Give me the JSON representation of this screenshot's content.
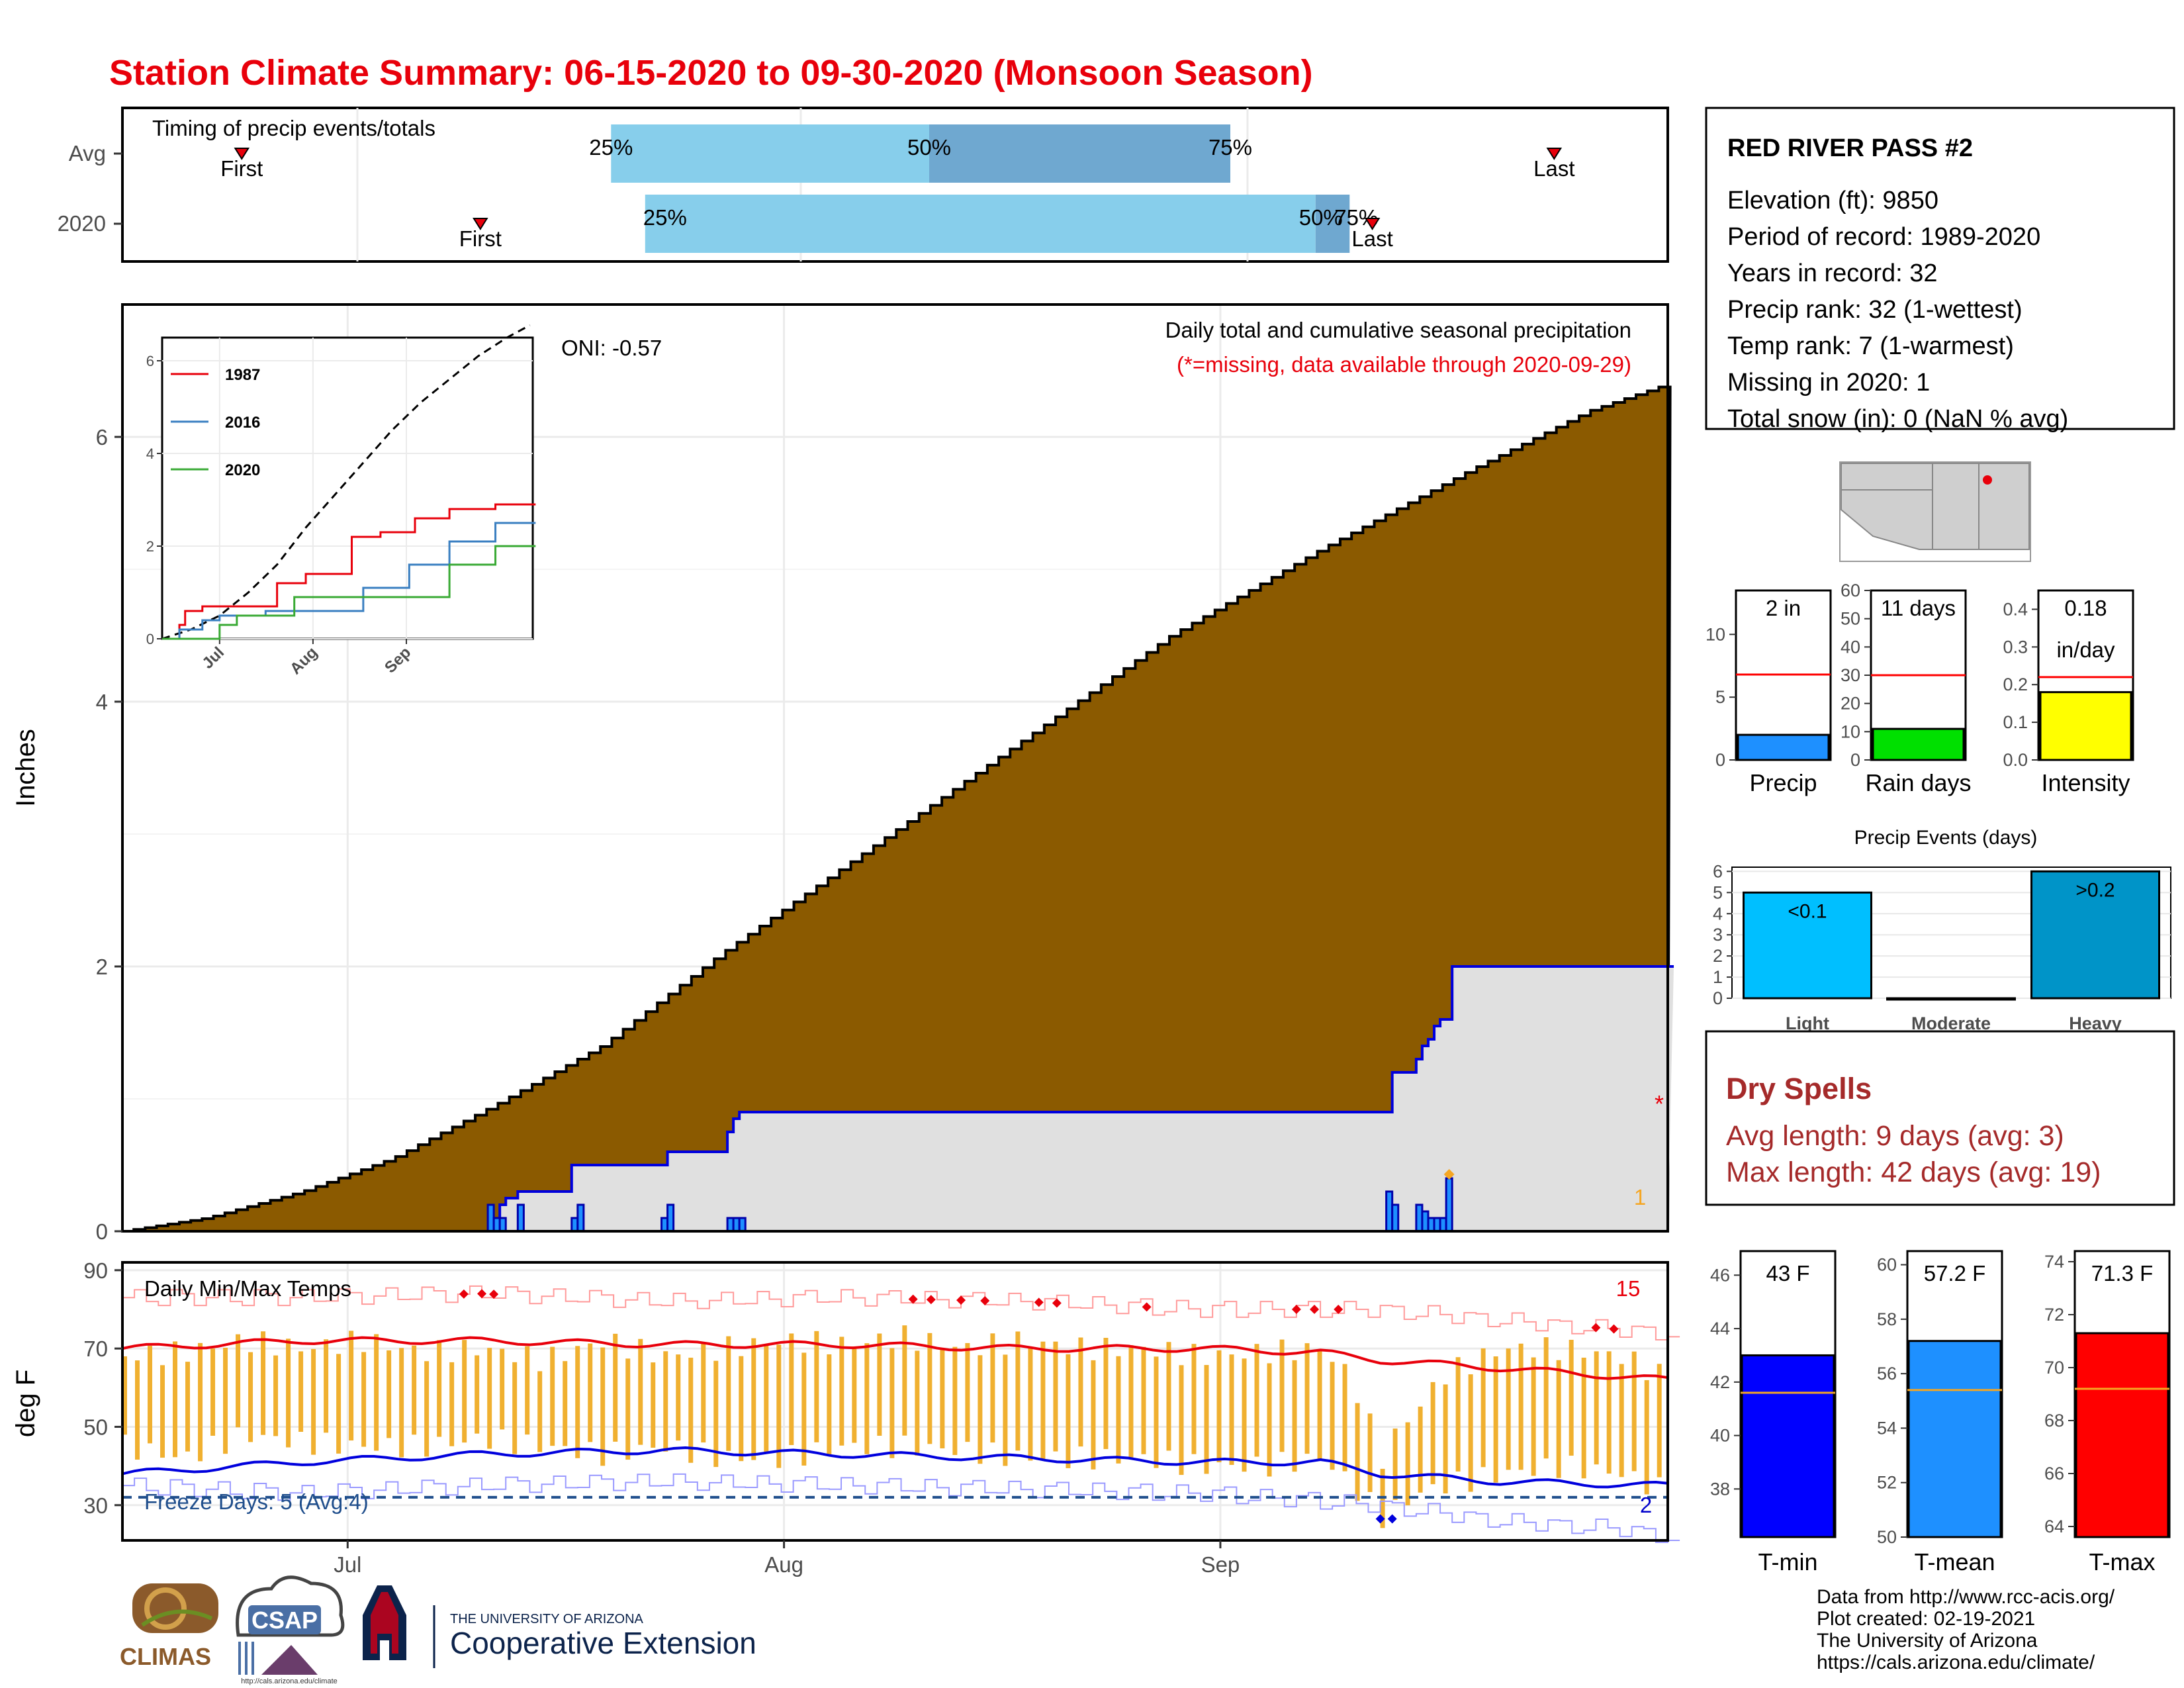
{
  "title": "Station Climate Summary: 06-15-2020 to 09-30-2020 (Monsoon Season)",
  "colors": {
    "title": "#e8000b",
    "precip_fill": "#8b5a00",
    "daily_bar": "#1e90ff",
    "max_temp": "#e8000b",
    "min_temp": "#0000dd",
    "range_bar": "#f0b030",
    "timing_light": "#87ceeb",
    "timing_dark": "#6fa8d0"
  },
  "timing": {
    "title": "Timing of precip events/totals",
    "rows": [
      {
        "label": "Avg",
        "first_day": 21,
        "q25_day": 86,
        "q50_day": 142,
        "q75_day": 195,
        "last_day": 252,
        "first_label": "First",
        "last_label": "Last",
        "q25_label": "25%",
        "q50_label": "50%",
        "q75_label": "75%"
      },
      {
        "label": "2020",
        "first_day": 63,
        "q25_day": 92,
        "q50_day": 210,
        "q75_day": 216,
        "last_day": 220,
        "first_label": "First",
        "last_label": "Last",
        "q25_label": "25%",
        "q50_label": "50%",
        "q75_label": "75%"
      }
    ]
  },
  "precip": {
    "title": "Daily total and cumulative seasonal precipitation",
    "note": "(*=missing, data available through 2020-09-29)",
    "oni": "ONI: -0.57",
    "ylabel": "Inches",
    "missing_count": "1",
    "missing_marker": "*",
    "yticks": [
      "0",
      "2",
      "4",
      "6"
    ]
  },
  "inset": {
    "yticks": [
      "0",
      "2",
      "4",
      "6"
    ],
    "xticks": [
      "Jul",
      "Aug",
      "Sep"
    ],
    "legend": [
      {
        "name": "1987",
        "color": "#e8000b"
      },
      {
        "name": "2016",
        "color": "#3a7fc1"
      },
      {
        "name": "2020",
        "color": "#3aaa35"
      }
    ]
  },
  "temps": {
    "title": "Daily Min/Max Temps",
    "ylabel": "deg F",
    "freeze_label": "Freeze Days: 5 (Avg:4)",
    "record_high_count": "15",
    "record_low_count": "2",
    "yticks": [
      "30",
      "50",
      "70",
      "90"
    ],
    "months": [
      "Jul",
      "Aug",
      "Sep"
    ]
  },
  "station": {
    "name": "RED RIVER PASS #2",
    "lines": [
      "Elevation (ft): 9850",
      "Period of record: 1989-2020",
      "Years in record: 32",
      "Precip rank: 32 (1-wettest)",
      "Temp rank: 7 (1-warmest)",
      "Missing in 2020: 1",
      "Total snow (in): 0 (NaN % avg)"
    ]
  },
  "minis": [
    {
      "label": "Precip",
      "value_label": "2 in",
      "value": 2.0,
      "avg": 6.8,
      "ymax": 13.5,
      "yticks": [
        "0",
        "5",
        "10"
      ],
      "tickvals": [
        0,
        5,
        10
      ],
      "color": "#1e90ff"
    },
    {
      "label": "Rain days",
      "value_label": "11 days",
      "value": 11,
      "avg": 30,
      "ymax": 60,
      "yticks": [
        "0",
        "10",
        "20",
        "30",
        "40",
        "50",
        "60"
      ],
      "tickvals": [
        0,
        10,
        20,
        30,
        40,
        50,
        60
      ],
      "color": "#00e000"
    },
    {
      "label": "Intensity",
      "value_label": "0.18",
      "value_label2": "in/day",
      "value": 0.18,
      "avg": 0.22,
      "ymax": 0.45,
      "yticks": [
        "0.0",
        "0.1",
        "0.2",
        "0.3",
        "0.4"
      ],
      "tickvals": [
        0,
        0.1,
        0.2,
        0.3,
        0.4
      ],
      "color": "#ffff00"
    }
  ],
  "events": {
    "title": "Precip Events (days)",
    "yticks": [
      "0",
      "1",
      "2",
      "3",
      "4",
      "5",
      "6"
    ],
    "bars": [
      {
        "label": "Light",
        "value_label": "<0.1",
        "value": 5,
        "color": "#00bfff"
      },
      {
        "label": "Moderate",
        "value_label": "",
        "value": 0,
        "color": "#1e90ff"
      },
      {
        "label": "Heavy",
        "value_label": ">0.2",
        "value": 6,
        "color": "#0094c8"
      }
    ]
  },
  "dry_spells": {
    "title": "Dry Spells",
    "avg_length": "Avg length: 9 days (avg: 3)",
    "max_length": "Max length: 42 days (avg: 19)"
  },
  "temp_minis": [
    {
      "label": "T-min",
      "value_label": "43 F",
      "value": 43.0,
      "avg": 41.6,
      "ymin": 36.2,
      "ymax": 46.9,
      "yticks": [
        "38",
        "40",
        "42",
        "44",
        "46"
      ],
      "tickvals": [
        38,
        40,
        42,
        44,
        46
      ],
      "color": "#0000ff"
    },
    {
      "label": "T-mean",
      "value_label": "57.2 F",
      "value": 57.2,
      "avg": 55.4,
      "ymin": 50.0,
      "ymax": 60.5,
      "yticks": [
        "50",
        "52",
        "54",
        "56",
        "58",
        "60"
      ],
      "tickvals": [
        50,
        52,
        54,
        56,
        58,
        60
      ],
      "color": "#1e90ff"
    },
    {
      "label": "T-max",
      "value_label": "71.3 F",
      "value": 71.3,
      "avg": 69.2,
      "ymin": 63.6,
      "ymax": 74.4,
      "yticks": [
        "64",
        "66",
        "68",
        "70",
        "72",
        "74"
      ],
      "tickvals": [
        64,
        66,
        68,
        70,
        72,
        74
      ],
      "color": "#ff0000"
    }
  ],
  "footer": {
    "lines": [
      "Data from http://www.rcc-acis.org/",
      "Plot created: 02-19-2021",
      "The University of Arizona",
      "https://cals.arizona.edu/climate/"
    ]
  },
  "logos": {
    "climas": "CLIMAS",
    "csap": "CSAP",
    "csap_url": "http://cals.arizona.edu/climate",
    "university": "THE UNIVERSITY OF ARIZONA",
    "extension": "Cooperative Extension"
  },
  "chart_data": [
    {
      "type": "area",
      "title": "Daily total and cumulative seasonal precipitation",
      "ylabel": "Inches",
      "ylim": [
        0,
        7
      ],
      "x_start": "2020-06-15",
      "x_end": "2020-09-30",
      "xticks": [
        "Jul",
        "Aug",
        "Sep"
      ],
      "series": [
        {
          "name": "avg_cumulative",
          "x_days": [
            0,
            14,
            30,
            45,
            62,
            80,
            100,
            125,
            150,
            175,
            200,
            225,
            245,
            258
          ],
          "values": [
            0,
            0.1,
            0.3,
            0.55,
            0.95,
            1.4,
            2.1,
            2.9,
            3.7,
            4.5,
            5.15,
            5.75,
            6.2,
            6.4
          ]
        },
        {
          "name": "2020_cumulative",
          "x_days": [
            0,
            61,
            63,
            64,
            66,
            75,
            76,
            90,
            91,
            101,
            102,
            103,
            106,
            107,
            108,
            109,
            211,
            212,
            216,
            217,
            218,
            219,
            220,
            221,
            222,
            223,
            258
          ],
          "values": [
            0,
            0,
            0.2,
            0.25,
            0.3,
            0.5,
            0.5,
            0.5,
            0.6,
            0.75,
            0.85,
            0.9,
            0.9,
            0.9,
            0.9,
            0.9,
            0.9,
            1.2,
            1.3,
            1.4,
            1.45,
            1.55,
            1.6,
            1.6,
            2.0,
            2.0,
            2.0
          ]
        },
        {
          "name": "2020_daily",
          "x_days": [
            61,
            62,
            63,
            66,
            75,
            76,
            90,
            91,
            101,
            102,
            103,
            211,
            212,
            216,
            217,
            218,
            219,
            220,
            221
          ],
          "values": [
            0.2,
            0.1,
            0.1,
            0.2,
            0.1,
            0.2,
            0.1,
            0.2,
            0.1,
            0.1,
            0.1,
            0.3,
            0.2,
            0.2,
            0.15,
            0.1,
            0.1,
            0.1,
            0.4
          ]
        }
      ]
    },
    {
      "type": "line",
      "title": "",
      "ylim": [
        0,
        6.5
      ],
      "xticks": [
        "Jul",
        "Aug",
        "Sep"
      ],
      "series": [
        {
          "name": "avg",
          "x_days": [
            0,
            20,
            40,
            60,
            80,
            100,
            120,
            140,
            160,
            180,
            200,
            220,
            240,
            258
          ],
          "values": [
            0,
            0.2,
            0.5,
            1.0,
            1.6,
            2.4,
            3.1,
            3.8,
            4.5,
            5.1,
            5.6,
            6.1,
            6.5,
            6.8
          ]
        },
        {
          "name": "1987",
          "x_days": [
            0,
            10,
            15,
            25,
            40,
            70,
            80,
            100,
            130,
            150,
            175,
            200,
            230,
            258
          ],
          "values": [
            0,
            0.3,
            0.6,
            0.7,
            0.7,
            0.7,
            1.2,
            1.4,
            2.2,
            2.3,
            2.6,
            2.8,
            2.9,
            3.1
          ]
        },
        {
          "name": "2016",
          "x_days": [
            0,
            10,
            25,
            40,
            70,
            110,
            140,
            170,
            200,
            230,
            258
          ],
          "values": [
            0,
            0.2,
            0.4,
            0.5,
            0.6,
            0.6,
            1.1,
            1.6,
            2.1,
            2.5,
            2.9
          ]
        },
        {
          "name": "2020",
          "x_days": [
            0,
            30,
            40,
            50,
            90,
            110,
            180,
            200,
            230,
            258
          ],
          "values": [
            0,
            0,
            0.3,
            0.5,
            0.9,
            0.9,
            0.9,
            1.6,
            2.0,
            2.0
          ]
        }
      ]
    },
    {
      "type": "line",
      "title": "Daily Min/Max Temps",
      "ylabel": "deg F",
      "ylim": [
        21,
        92
      ],
      "xticks": [
        "Jul",
        "Aug",
        "Sep"
      ],
      "series": [
        {
          "name": "avg_max",
          "x_days": [
            0,
            30,
            60,
            90,
            120,
            150,
            180,
            200,
            210,
            230,
            258
          ],
          "values": [
            70,
            72,
            72,
            71,
            71,
            70,
            70,
            69,
            67,
            65,
            62
          ]
        },
        {
          "name": "avg_min",
          "x_days": [
            0,
            30,
            60,
            90,
            120,
            150,
            180,
            200,
            210,
            230,
            258
          ],
          "values": [
            38,
            41,
            43,
            44,
            43,
            42,
            41,
            41,
            38,
            36,
            35
          ]
        },
        {
          "name": "record_max",
          "x_days": [
            0,
            30,
            60,
            90,
            120,
            150,
            180,
            210,
            240,
            258
          ],
          "values": [
            83,
            83,
            84,
            82,
            83,
            82,
            80,
            80,
            76,
            74
          ]
        },
        {
          "name": "record_min",
          "x_days": [
            0,
            30,
            60,
            90,
            120,
            150,
            180,
            210,
            230,
            250,
            258
          ],
          "values": [
            35,
            33,
            35,
            36,
            35,
            34,
            33,
            30,
            26,
            24,
            22
          ]
        },
        {
          "name": "freeze_line",
          "x_days": [
            0,
            258
          ],
          "values": [
            32,
            32
          ]
        }
      ],
      "daily_ranges": {
        "x_days": [
          0,
          10,
          20,
          30,
          40,
          50,
          60,
          70,
          80,
          90,
          100,
          110,
          120,
          130,
          140,
          150,
          160,
          170,
          180,
          190,
          200,
          205,
          210,
          213,
          216,
          220,
          230,
          240,
          250,
          258
        ],
        "max": [
          68,
          69,
          72,
          70,
          72,
          69,
          70,
          67,
          72,
          68,
          70,
          72,
          71,
          73,
          70,
          72,
          70,
          70,
          68,
          69,
          70,
          62,
          42,
          50,
          55,
          63,
          70,
          70,
          68,
          62
        ],
        "min": [
          45,
          42,
          48,
          46,
          45,
          45,
          47,
          45,
          43,
          45,
          42,
          42,
          45,
          45,
          44,
          42,
          42,
          42,
          40,
          40,
          42,
          35,
          27,
          30,
          33,
          35,
          38,
          40,
          38,
          33
        ]
      }
    },
    {
      "type": "bar",
      "title": "",
      "categories": [
        "Precip"
      ],
      "values": [
        2
      ],
      "avg": 6.8,
      "ylim": [
        0,
        13.5
      ]
    },
    {
      "type": "bar",
      "title": "",
      "categories": [
        "Rain days"
      ],
      "values": [
        11
      ],
      "avg": 30,
      "ylim": [
        0,
        60
      ]
    },
    {
      "type": "bar",
      "title": "",
      "categories": [
        "Intensity"
      ],
      "values": [
        0.18
      ],
      "avg": 0.22,
      "ylim": [
        0,
        0.45
      ]
    },
    {
      "type": "bar",
      "title": "Precip Events (days)",
      "categories": [
        "Light",
        "Moderate",
        "Heavy"
      ],
      "values": [
        5,
        0,
        6
      ],
      "ylim": [
        0,
        6.2
      ]
    },
    {
      "type": "bar",
      "title": "",
      "categories": [
        "T-min"
      ],
      "values": [
        43.0
      ],
      "avg": 41.6,
      "ylim": [
        36.2,
        46.9
      ]
    },
    {
      "type": "bar",
      "title": "",
      "categories": [
        "T-mean"
      ],
      "values": [
        57.2
      ],
      "avg": 55.4,
      "ylim": [
        50.0,
        60.5
      ]
    },
    {
      "type": "bar",
      "title": "",
      "categories": [
        "T-max"
      ],
      "values": [
        71.3
      ],
      "avg": 69.2,
      "ylim": [
        63.6,
        74.4
      ]
    }
  ]
}
